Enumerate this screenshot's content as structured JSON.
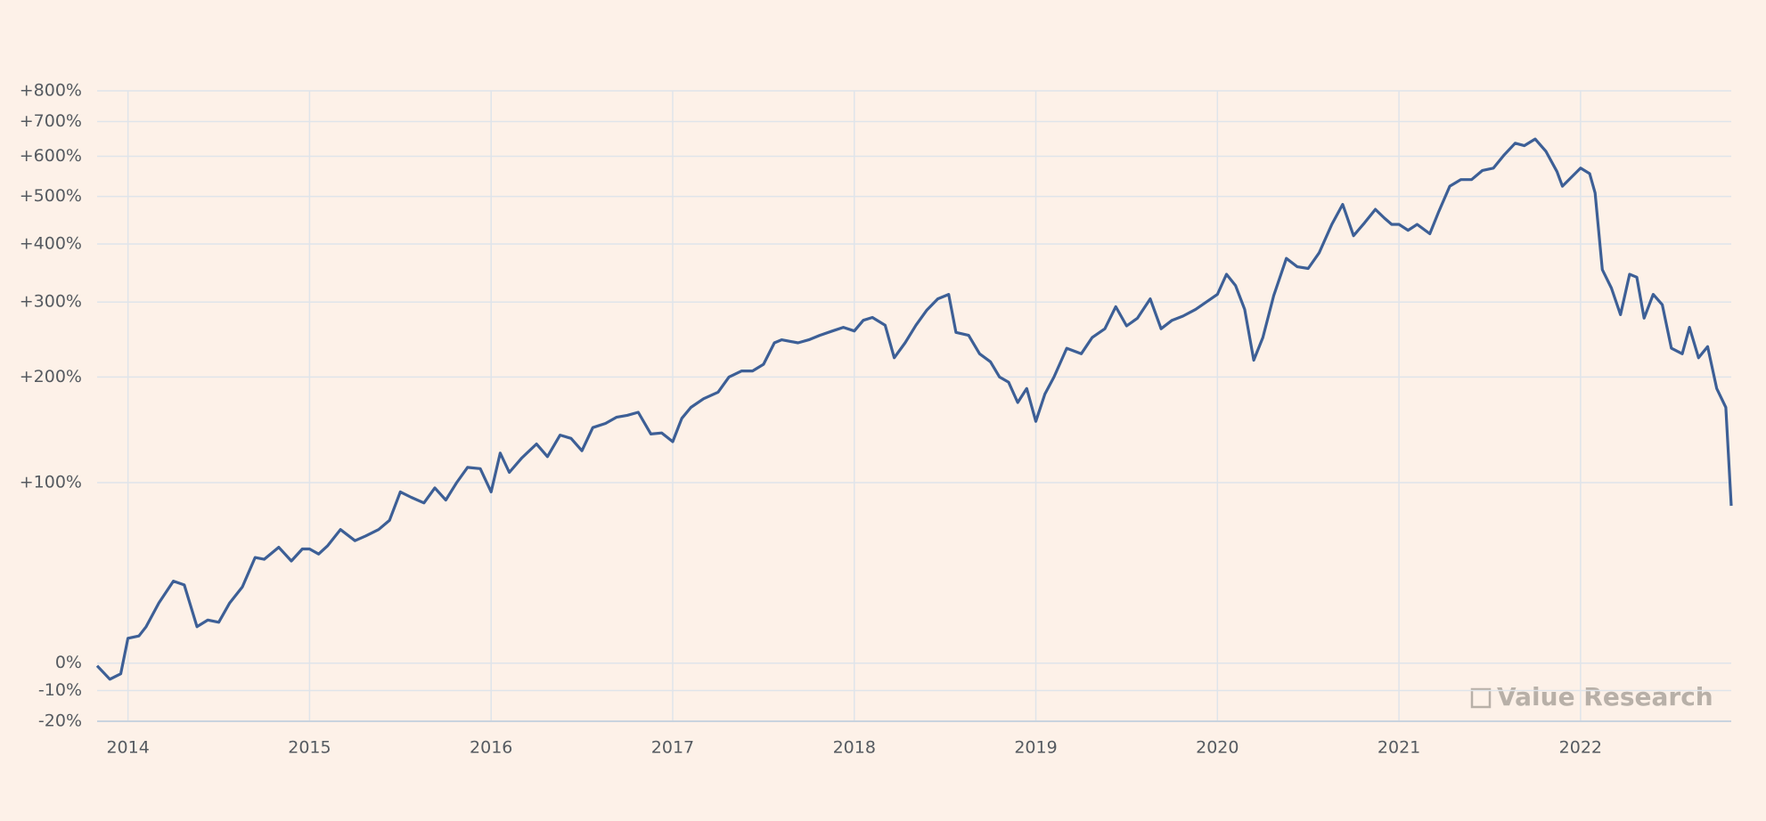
{
  "chart_data": {
    "type": "line",
    "watermark": "Value Research",
    "log_scale": true,
    "grid": true,
    "xlim": [
      2013.83,
      2022.83
    ],
    "xticks": [
      2014,
      2015,
      2016,
      2017,
      2018,
      2019,
      2020,
      2021,
      2022
    ],
    "ylim": [
      -20,
      800
    ],
    "yticks": [
      {
        "value": -20,
        "label": "-20%"
      },
      {
        "value": -10,
        "label": "-10%"
      },
      {
        "value": 0,
        "label": "0%"
      },
      {
        "value": 100,
        "label": "+100%"
      },
      {
        "value": 200,
        "label": "+200%"
      },
      {
        "value": 300,
        "label": "+300%"
      },
      {
        "value": 400,
        "label": "+400%"
      },
      {
        "value": 500,
        "label": "+500%"
      },
      {
        "value": 600,
        "label": "+600%"
      },
      {
        "value": 700,
        "label": "+700%"
      },
      {
        "value": 800,
        "label": "+800%"
      }
    ],
    "x": [
      2013.83,
      2013.9,
      2013.96,
      2014.0,
      2014.06,
      2014.1,
      2014.17,
      2014.25,
      2014.31,
      2014.38,
      2014.44,
      2014.5,
      2014.56,
      2014.63,
      2014.7,
      2014.75,
      2014.83,
      2014.9,
      2014.96,
      2015.0,
      2015.05,
      2015.1,
      2015.17,
      2015.25,
      2015.31,
      2015.38,
      2015.44,
      2015.5,
      2015.56,
      2015.63,
      2015.69,
      2015.75,
      2015.81,
      2015.87,
      2015.94,
      2016.0,
      2016.05,
      2016.1,
      2016.17,
      2016.25,
      2016.31,
      2016.38,
      2016.44,
      2016.5,
      2016.56,
      2016.63,
      2016.69,
      2016.75,
      2016.81,
      2016.88,
      2016.94,
      2017.0,
      2017.05,
      2017.1,
      2017.17,
      2017.25,
      2017.31,
      2017.38,
      2017.44,
      2017.5,
      2017.56,
      2017.6,
      2017.69,
      2017.75,
      2017.81,
      2017.88,
      2017.94,
      2018.0,
      2018.05,
      2018.1,
      2018.17,
      2018.22,
      2018.28,
      2018.34,
      2018.4,
      2018.46,
      2018.52,
      2018.56,
      2018.63,
      2018.69,
      2018.75,
      2018.8,
      2018.85,
      2018.9,
      2018.95,
      2019.0,
      2019.05,
      2019.1,
      2019.17,
      2019.25,
      2019.31,
      2019.38,
      2019.44,
      2019.5,
      2019.56,
      2019.63,
      2019.69,
      2019.75,
      2019.81,
      2019.88,
      2020.0,
      2020.05,
      2020.1,
      2020.15,
      2020.2,
      2020.25,
      2020.31,
      2020.38,
      2020.44,
      2020.5,
      2020.56,
      2020.63,
      2020.69,
      2020.75,
      2020.81,
      2020.87,
      2020.92,
      2020.96,
      2021.0,
      2021.05,
      2021.1,
      2021.17,
      2021.22,
      2021.28,
      2021.34,
      2021.4,
      2021.46,
      2021.52,
      2021.58,
      2021.64,
      2021.69,
      2021.75,
      2021.81,
      2021.87,
      2021.9,
      2022.0,
      2022.05,
      2022.08,
      2022.12,
      2022.17,
      2022.22,
      2022.27,
      2022.31,
      2022.35,
      2022.4,
      2022.45,
      2022.5,
      2022.56,
      2022.6,
      2022.65,
      2022.7,
      2022.75,
      2022.8,
      2022.83
    ],
    "series": [
      {
        "color": "#3d5f96",
        "values": [
          -1,
          -6,
          -4,
          10,
          11,
          15,
          26,
          37,
          35,
          15,
          18,
          17,
          26,
          34,
          50,
          49,
          56,
          48,
          55,
          55,
          52,
          57,
          67,
          60,
          63,
          67,
          73,
          93,
          89,
          85,
          96,
          87,
          100,
          112,
          111,
          93,
          124,
          108,
          120,
          132,
          121,
          140,
          137,
          126,
          147,
          151,
          157,
          159,
          162,
          141,
          142,
          134,
          156,
          167,
          176,
          183,
          200,
          207,
          207,
          215,
          242,
          246,
          242,
          246,
          252,
          258,
          263,
          258,
          273,
          277,
          266,
          223,
          242,
          266,
          288,
          305,
          312,
          256,
          252,
          228,
          218,
          200,
          194,
          172,
          187,
          153,
          181,
          200,
          235,
          228,
          249,
          261,
          293,
          265,
          276,
          305,
          261,
          273,
          279,
          289,
          312,
          345,
          326,
          289,
          220,
          249,
          310,
          373,
          358,
          355,
          383,
          439,
          482,
          416,
          442,
          471,
          452,
          439,
          439,
          427,
          439,
          420,
          467,
          524,
          540,
          540,
          563,
          569,
          604,
          636,
          629,
          648,
          613,
          560,
          524,
          569,
          555,
          508,
          353,
          322,
          281,
          345,
          340,
          276,
          312,
          296,
          235,
          228,
          263,
          223,
          237,
          187,
          167,
          83
        ]
      }
    ]
  }
}
